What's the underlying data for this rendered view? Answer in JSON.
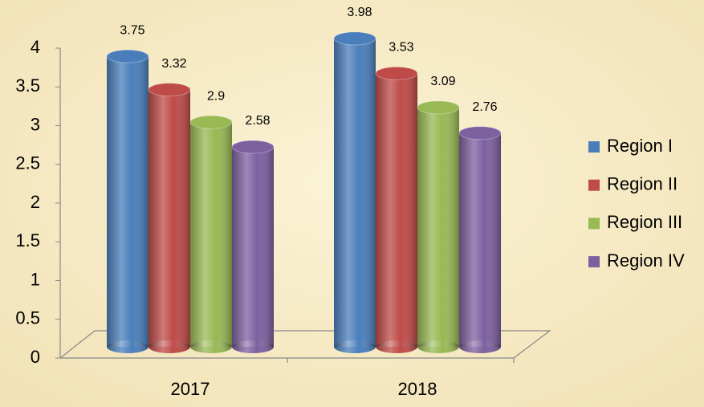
{
  "chart_data": {
    "type": "bar",
    "categories": [
      "2017",
      "2018"
    ],
    "series": [
      {
        "name": "Region I",
        "color": "#4a7ebb",
        "values": [
          3.75,
          3.98
        ]
      },
      {
        "name": "Region II",
        "color": "#be4b48",
        "values": [
          3.32,
          3.53
        ]
      },
      {
        "name": "Region III",
        "color": "#98b954",
        "values": [
          2.9,
          3.09
        ]
      },
      {
        "name": "Region IV",
        "color": "#7d60a0",
        "values": [
          2.58,
          2.76
        ]
      }
    ],
    "ylim": [
      0,
      4
    ],
    "yticks": [
      0,
      0.5,
      1,
      1.5,
      2,
      2.5,
      3,
      3.5,
      4
    ],
    "legend": "right"
  }
}
